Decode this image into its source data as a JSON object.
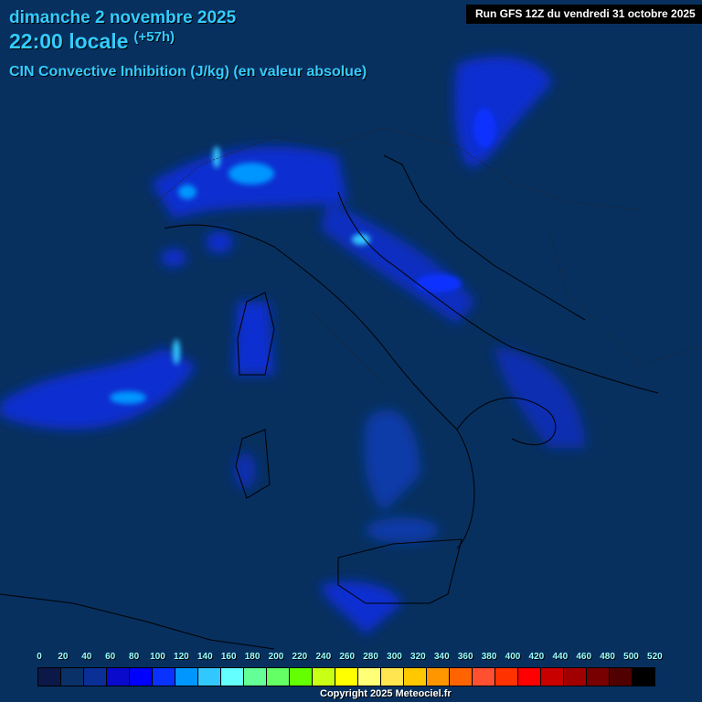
{
  "header": {
    "date": "dimanche 2 novembre 2025",
    "time": "22:00 locale",
    "offset": "(+57h)",
    "parameter": "CIN Convective Inhibition (J/kg) (en valeur absolue)",
    "run": "Run GFS 12Z du vendredi 31 octobre 2025"
  },
  "legend": {
    "labels": [
      "0",
      "20",
      "40",
      "60",
      "80",
      "100",
      "120",
      "140",
      "160",
      "180",
      "200",
      "220",
      "240",
      "260",
      "280",
      "300",
      "320",
      "340",
      "360",
      "380",
      "400",
      "420",
      "440",
      "460",
      "480",
      "500",
      "520"
    ],
    "colors": [
      "#0c1848",
      "#0a3168",
      "#0a2f96",
      "#0a0acc",
      "#0000ff",
      "#0a32ff",
      "#0096ff",
      "#32c8ff",
      "#64ffff",
      "#64ff96",
      "#64ff64",
      "#64ff00",
      "#c8ff14",
      "#ffff00",
      "#ffff78",
      "#ffe650",
      "#ffc800",
      "#ff9600",
      "#ff6400",
      "#ff5032",
      "#ff3200",
      "#ff0000",
      "#c80000",
      "#a00000",
      "#780000",
      "#500000",
      "#000000"
    ]
  },
  "copyright": "Copyright 2025 Meteociel.fr"
}
